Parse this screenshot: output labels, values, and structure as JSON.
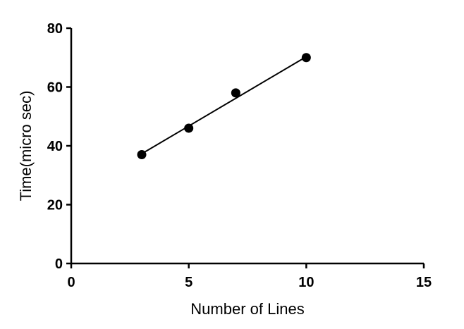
{
  "chart_data": {
    "type": "scatter",
    "title": "",
    "xlabel": "Number of Lines",
    "ylabel": "Time(micro sec)",
    "xlim": [
      0,
      15
    ],
    "ylim": [
      0,
      80
    ],
    "x_ticks": [
      0,
      5,
      10,
      15
    ],
    "y_ticks": [
      0,
      20,
      40,
      60,
      80
    ],
    "grid": false,
    "series": [
      {
        "x": [
          3,
          5,
          7,
          10
        ],
        "y": [
          37,
          46,
          58,
          70
        ],
        "marker_color": "#000000"
      }
    ],
    "fit_line": {
      "x": [
        3,
        10
      ],
      "y": [
        37.3,
        70.3
      ],
      "color": "#000000"
    }
  }
}
